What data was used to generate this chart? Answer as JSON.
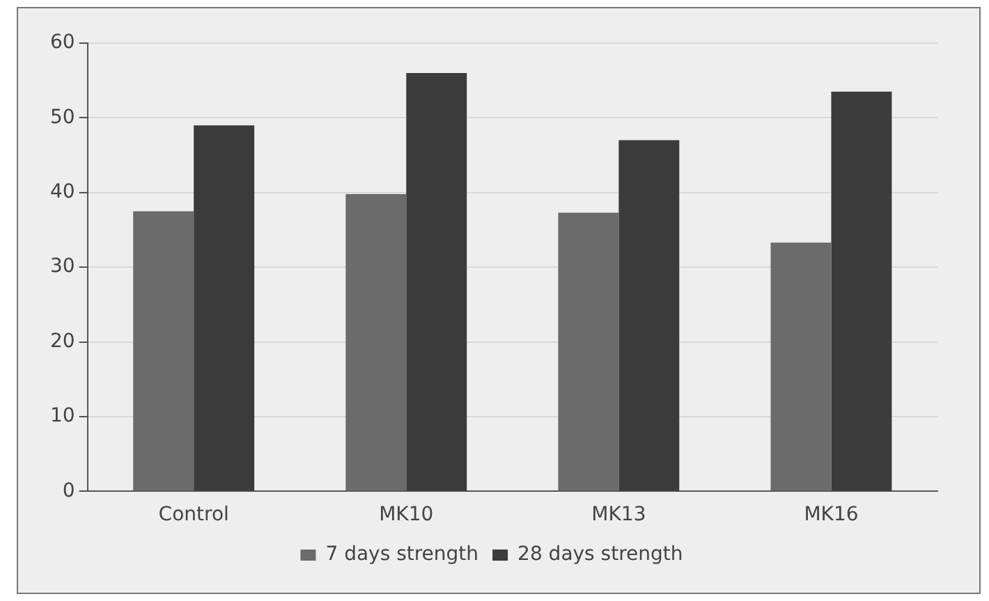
{
  "chart_data": {
    "type": "bar",
    "categories": [
      "Control",
      "MK10",
      "MK13",
      "MK16"
    ],
    "series": [
      {
        "name": "7 days strength",
        "color": "#6b6b6b",
        "values": [
          37.5,
          39.8,
          37.3,
          33.3
        ]
      },
      {
        "name": "28 days strength",
        "color": "#3b3b3b",
        "values": [
          49,
          56,
          47,
          53.5
        ]
      }
    ],
    "ylim": [
      0,
      60
    ],
    "yticks": [
      0,
      10,
      20,
      30,
      40,
      50,
      60
    ],
    "grid": "y",
    "legend": "bottom"
  }
}
